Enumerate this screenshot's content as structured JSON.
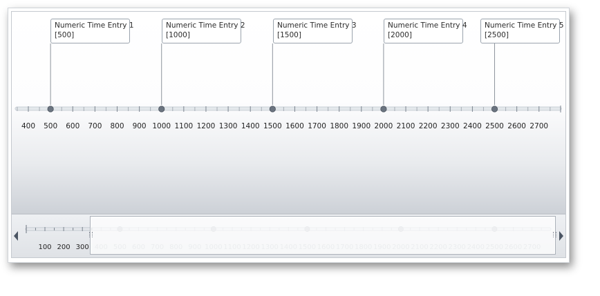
{
  "timeline": {
    "axis_min": 400,
    "axis_max": 2700,
    "axis_step": 100,
    "entries": [
      {
        "title": "Numeric Time Entry 1",
        "value_label": "[500]",
        "value": 500
      },
      {
        "title": "Numeric Time Entry 2",
        "value_label": "[1000]",
        "value": 1000
      },
      {
        "title": "Numeric Time Entry 3",
        "value_label": "[1500]",
        "value": 1500
      },
      {
        "title": "Numeric Time Entry 4",
        "value_label": "[2000]",
        "value": 2000
      },
      {
        "title": "Numeric Time Entry 5",
        "value_label": "[2500]",
        "value": 2500
      }
    ]
  },
  "navigator": {
    "overview_labels": [
      "100",
      "200",
      "300"
    ],
    "window_labels": [
      "400",
      "500",
      "600",
      "700",
      "800",
      "900",
      "1000",
      "1100",
      "1200",
      "1300",
      "1400",
      "1500",
      "1600",
      "1700",
      "1800",
      "1900",
      "2000",
      "2100",
      "2200",
      "2300",
      "2400",
      "2500",
      "2600",
      "2700"
    ]
  },
  "colors": {
    "track": "#c9cfd6",
    "marker": "#6b7480",
    "callout_border": "#9aa3ad",
    "text": "#2b2b2b",
    "faded_text": "#b8bdc4"
  },
  "icons": {
    "scroll_left": "left-triangle",
    "scroll_right": "right-triangle"
  }
}
